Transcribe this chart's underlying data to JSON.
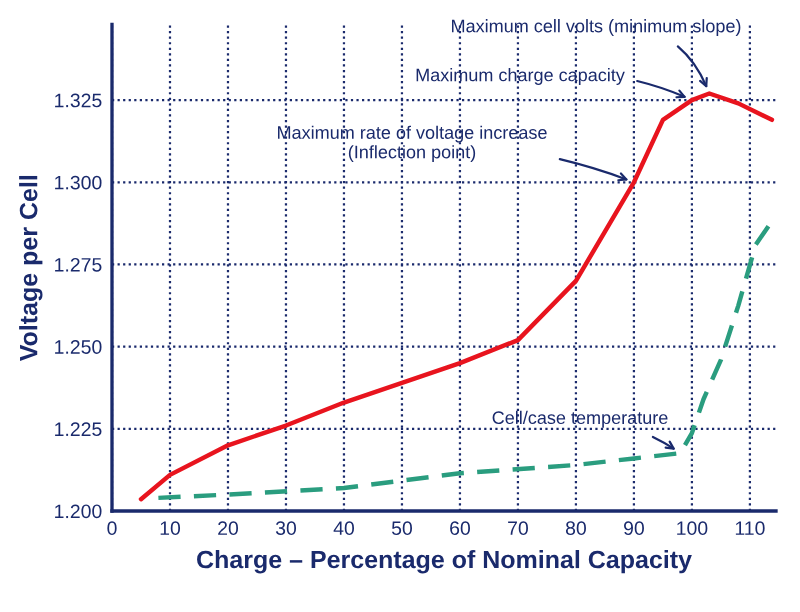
{
  "chart_data": {
    "type": "line",
    "xlabel": "Charge – Percentage of Nominal Capacity",
    "ylabel": "Voltage per Cell",
    "xlim": [
      0,
      114.5
    ],
    "ylim": [
      1.2,
      1.348
    ],
    "xticks": [
      0,
      10,
      20,
      30,
      40,
      50,
      60,
      70,
      80,
      90,
      100,
      110
    ],
    "yticks": [
      {
        "value": 1.2,
        "label": "1.200"
      },
      {
        "value": 1.225,
        "label": "1.225"
      },
      {
        "value": 1.25,
        "label": "1.250"
      },
      {
        "value": 1.275,
        "label": "1.275"
      },
      {
        "value": 1.3,
        "label": "1.300"
      },
      {
        "value": 1.325,
        "label": "1.325"
      }
    ],
    "grid": true,
    "marker": "none",
    "series": [
      {
        "color": "#e8141e",
        "line_style": "solid",
        "x": [
          5,
          10,
          20,
          30,
          40,
          50,
          60,
          70,
          80,
          90,
          95,
          100,
          103,
          108,
          113.8
        ],
        "values": [
          1.2036,
          1.211,
          1.22,
          1.226,
          1.233,
          1.239,
          1.245,
          1.252,
          1.27,
          1.3,
          1.319,
          1.325,
          1.327,
          1.324,
          1.319
        ]
      },
      {
        "color": "#2a9d7f",
        "line_style": "dashed",
        "x": [
          8,
          20,
          40,
          60,
          80,
          90,
          98,
          100,
          102,
          105,
          108,
          111,
          114.5
        ],
        "values": [
          1.204,
          1.205,
          1.207,
          1.2115,
          1.214,
          1.216,
          1.2176,
          1.2237,
          1.234,
          1.246,
          1.2625,
          1.281,
          1.29
        ]
      }
    ],
    "annotations": [
      {
        "text": "Maximum cell volts (minimum slope)",
        "x": 103,
        "y": 1.327
      },
      {
        "text": "Maximum charge capacity",
        "x": 100,
        "y": 1.325
      },
      {
        "text": "Maximum rate of voltage increase\n(Inflection point)",
        "x": 90,
        "y": 1.3
      },
      {
        "text": "Cell/case temperature",
        "x": 98,
        "y": 1.2176
      }
    ]
  }
}
